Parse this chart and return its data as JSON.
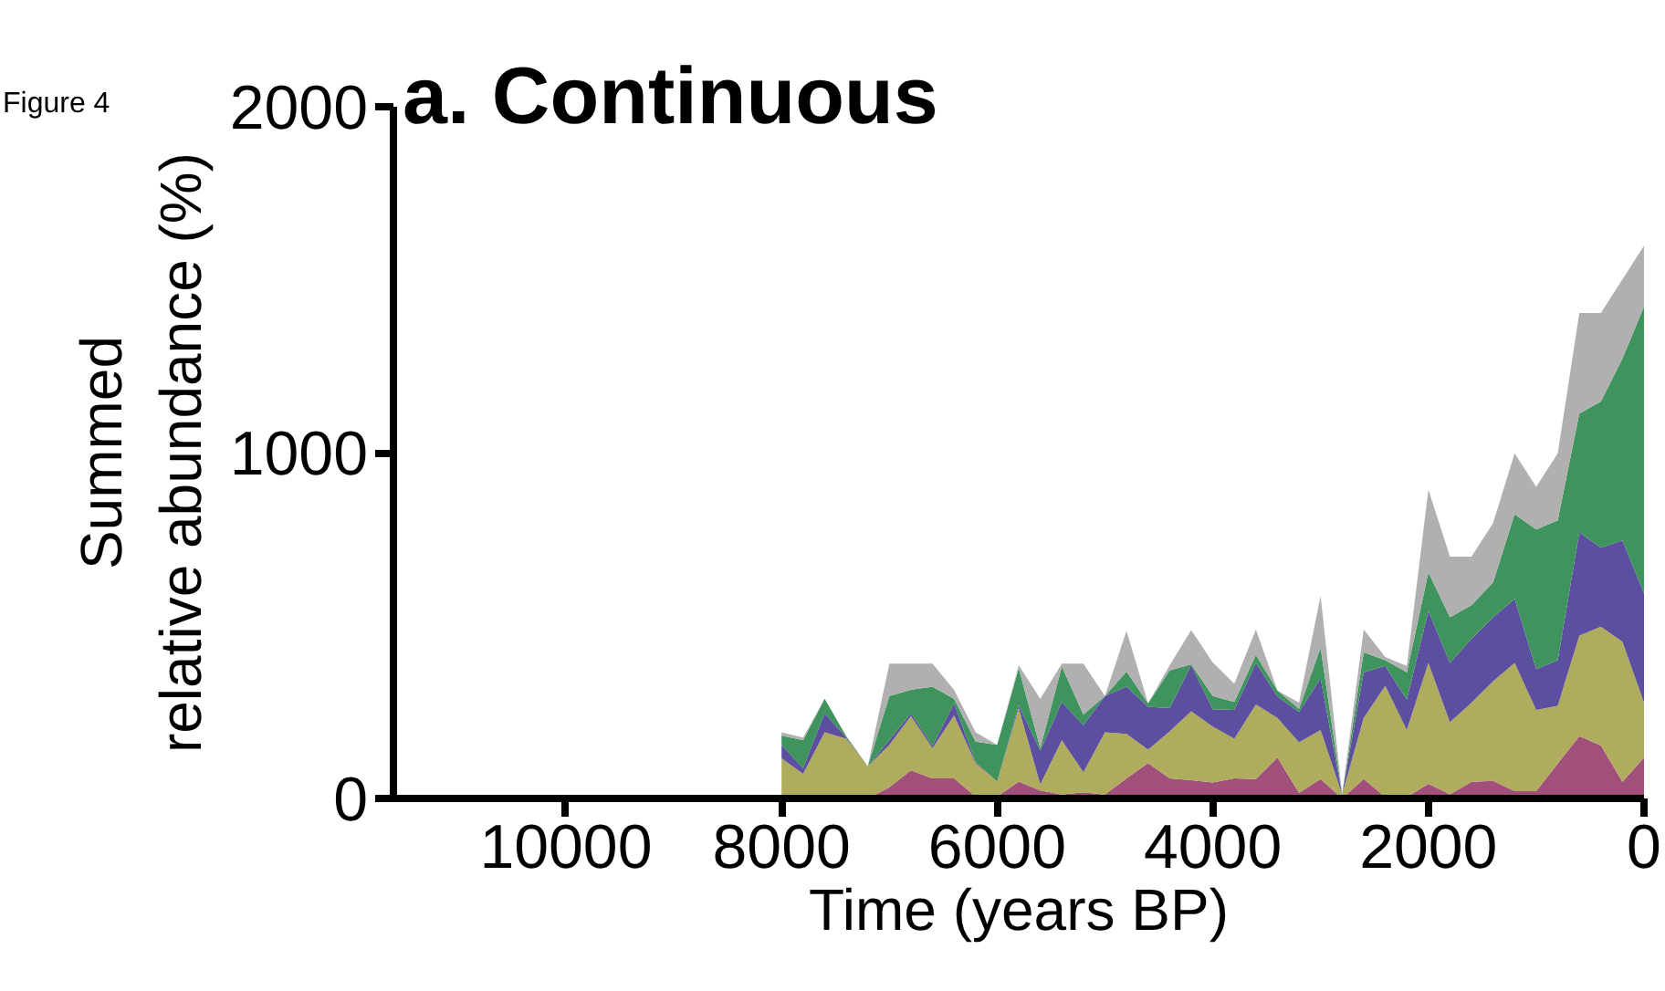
{
  "chart_data": {
    "type": "area",
    "stacked": true,
    "title": "a. Continuous",
    "xlabel": "Time (years BP)",
    "ylabel": "Summed\nrelative abundance (%)",
    "annotations": [
      "Figure 4"
    ],
    "x": [
      8000,
      7800,
      7600,
      7400,
      7200,
      7000,
      6800,
      6600,
      6400,
      6200,
      6000,
      5800,
      5600,
      5400,
      5200,
      5000,
      4800,
      4600,
      4400,
      4200,
      4000,
      3800,
      3600,
      3400,
      3200,
      3000,
      2800,
      2600,
      2400,
      2200,
      2000,
      1800,
      1600,
      1400,
      1200,
      1000,
      800,
      600,
      400,
      200,
      0
    ],
    "series": [
      {
        "color": "#a0507a",
        "values": [
          0,
          0,
          0,
          0,
          0,
          32,
          81,
          58,
          58,
          5,
          5,
          49,
          23,
          11,
          18,
          11,
          58,
          102,
          58,
          53,
          46,
          58,
          56,
          118,
          16,
          56,
          0,
          56,
          4,
          4,
          42,
          12,
          48,
          51,
          21,
          21,
          101,
          180,
          153,
          48,
          118
        ]
      },
      {
        "color": "#b0ac5e",
        "values": [
          116,
          71,
          191,
          173,
          93,
          123,
          157,
          87,
          182,
          97,
          44,
          212,
          18,
          157,
          58,
          180,
          129,
          39,
          136,
          199,
          162,
          115,
          216,
          115,
          146,
          142,
          12,
          177,
          322,
          194,
          350,
          208,
          229,
          288,
          371,
          235,
          167,
          291,
          344,
          405,
          159
        ]
      },
      {
        "color": "#5c4fa0",
        "values": [
          39,
          17,
          56,
          3,
          0,
          14,
          9,
          7,
          35,
          4,
          0,
          9,
          97,
          111,
          136,
          105,
          136,
          124,
          67,
          133,
          50,
          83,
          120,
          62,
          88,
          149,
          0,
          132,
          57,
          88,
          150,
          172,
          185,
          185,
          185,
          118,
          132,
          298,
          228,
          293,
          316
        ]
      },
      {
        "color": "#3f935c",
        "values": [
          27,
          80,
          41,
          4,
          0,
          127,
          67,
          171,
          13,
          58,
          106,
          106,
          8,
          102,
          31,
          0,
          44,
          10,
          109,
          3,
          38,
          23,
          23,
          17,
          9,
          89,
          0,
          57,
          17,
          79,
          112,
          132,
          97,
          101,
          245,
          404,
          404,
          344,
          423,
          526,
          829
        ]
      },
      {
        "color": "#b0b0b0",
        "values": [
          9,
          8,
          0,
          0,
          0,
          94,
          76,
          67,
          26,
          27,
          0,
          9,
          142,
          9,
          147,
          0,
          118,
          0,
          15,
          99,
          97,
          53,
          74,
          0,
          18,
          150,
          0,
          67,
          9,
          18,
          239,
          175,
          140,
          171,
          176,
          123,
          194,
          291,
          256,
          229,
          176
        ]
      }
    ],
    "xlim": [
      11600,
      0
    ],
    "xticks": [
      10000,
      8000,
      6000,
      4000,
      2000,
      0
    ],
    "ylim": [
      0,
      2000
    ],
    "yticks": [
      0,
      1000,
      2000
    ]
  }
}
